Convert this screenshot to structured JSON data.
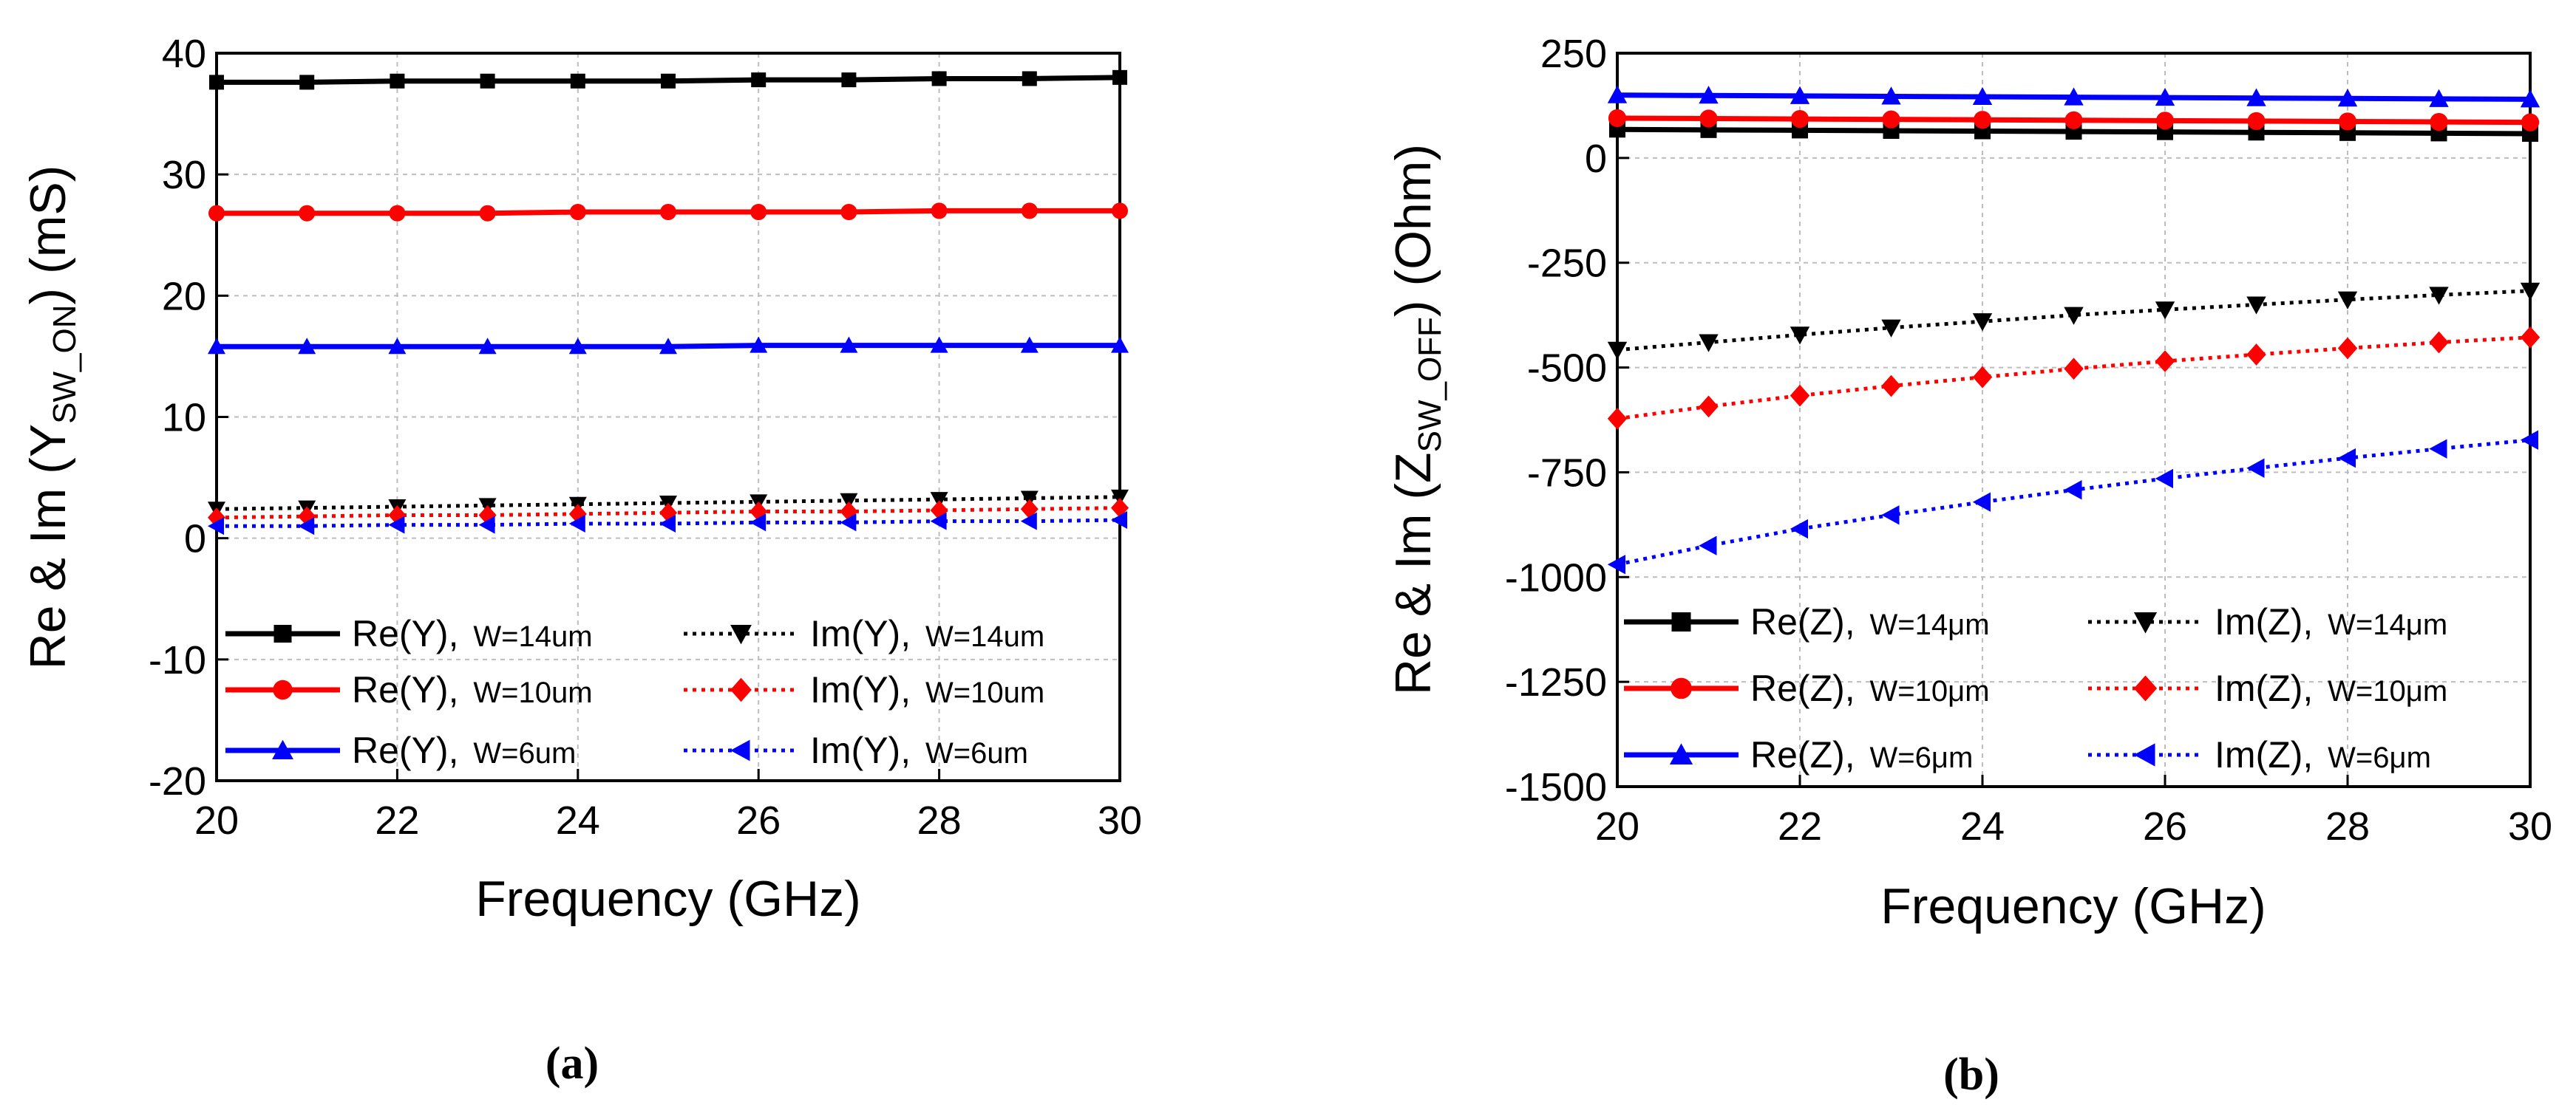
{
  "chart_data": [
    {
      "type": "line",
      "panel_label": "(a)",
      "xlabel": "Frequency (GHz)",
      "ylabel_prefix": "Re & Im (Y",
      "ylabel_sub": "SW_ON",
      "ylabel_suffix": ") (mS)",
      "xlim": [
        20,
        30
      ],
      "ylim": [
        -20,
        40
      ],
      "xticks": [
        "20",
        "22",
        "24",
        "26",
        "28",
        "30"
      ],
      "yticks": [
        "-20",
        "-10",
        "0",
        "10",
        "20",
        "30",
        "40"
      ],
      "grid": true,
      "legend_position": "bottom",
      "x": [
        20,
        21,
        22,
        23,
        24,
        25,
        26,
        27,
        28,
        29,
        30
      ],
      "series": [
        {
          "name": "Re(Y)",
          "sub": "W=14um",
          "color": "#000000",
          "style": "solid",
          "marker": "square",
          "values": [
            37.6,
            37.6,
            37.7,
            37.7,
            37.7,
            37.7,
            37.8,
            37.8,
            37.9,
            37.9,
            38.0
          ]
        },
        {
          "name": "Re(Y)",
          "sub": "W=10um",
          "color": "#ff0000",
          "style": "solid",
          "marker": "circle",
          "values": [
            26.8,
            26.8,
            26.8,
            26.8,
            26.9,
            26.9,
            26.9,
            26.9,
            27.0,
            27.0,
            27.0
          ]
        },
        {
          "name": "Re(Y)",
          "sub": "W=6um",
          "color": "#0000ff",
          "style": "solid",
          "marker": "triangle-up",
          "values": [
            15.8,
            15.8,
            15.8,
            15.8,
            15.8,
            15.8,
            15.9,
            15.9,
            15.9,
            15.9,
            15.9
          ]
        },
        {
          "name": "Im(Y)",
          "sub": "W=14um",
          "color": "#000000",
          "style": "dotted",
          "marker": "triangle-down",
          "values": [
            2.4,
            2.5,
            2.6,
            2.7,
            2.8,
            2.9,
            3.0,
            3.1,
            3.2,
            3.3,
            3.4
          ]
        },
        {
          "name": "Im(Y)",
          "sub": "W=10um",
          "color": "#ff0000",
          "style": "dotted",
          "marker": "diamond",
          "values": [
            1.7,
            1.8,
            1.9,
            1.9,
            2.0,
            2.1,
            2.2,
            2.2,
            2.3,
            2.4,
            2.5
          ]
        },
        {
          "name": "Im(Y)",
          "sub": "W=6um",
          "color": "#0000ff",
          "style": "dotted",
          "marker": "triangle-left",
          "values": [
            1.0,
            1.0,
            1.1,
            1.1,
            1.2,
            1.2,
            1.3,
            1.3,
            1.4,
            1.4,
            1.5
          ]
        }
      ]
    },
    {
      "type": "line",
      "panel_label": "(b)",
      "xlabel": "Frequency (GHz)",
      "ylabel_prefix": "Re & Im (Z",
      "ylabel_sub": "SW_OFF",
      "ylabel_suffix": ") (Ohm)",
      "xlim": [
        20,
        30
      ],
      "ylim": [
        -1500,
        250
      ],
      "xticks": [
        "20",
        "22",
        "24",
        "26",
        "28",
        "30"
      ],
      "yticks": [
        "-1500",
        "-1250",
        "-1000",
        "-750",
        "-500",
        "-250",
        "0",
        "250"
      ],
      "grid": true,
      "legend_position": "bottom",
      "x": [
        20,
        21,
        22,
        23,
        24,
        25,
        26,
        27,
        28,
        29,
        30
      ],
      "series": [
        {
          "name": "Re(Z)",
          "sub": "W=14μm",
          "color": "#000000",
          "style": "solid",
          "marker": "square",
          "values": [
            68,
            67,
            66,
            65,
            64,
            63,
            62,
            61,
            60,
            59,
            58
          ]
        },
        {
          "name": "Re(Z)",
          "sub": "W=10μm",
          "color": "#ff0000",
          "style": "solid",
          "marker": "circle",
          "values": [
            95,
            94,
            93,
            92,
            91,
            90,
            89,
            88,
            87,
            86,
            85
          ]
        },
        {
          "name": "Re(Z)",
          "sub": "W=6μm",
          "color": "#0000ff",
          "style": "solid",
          "marker": "triangle-up",
          "values": [
            150,
            149,
            148,
            147,
            146,
            145,
            144,
            143,
            142,
            141,
            140
          ]
        },
        {
          "name": "Im(Z)",
          "sub": "W=14μm",
          "color": "#000000",
          "style": "dotted",
          "marker": "triangle-down",
          "values": [
            -458,
            -440,
            -422,
            -405,
            -390,
            -375,
            -362,
            -350,
            -338,
            -327,
            -317
          ]
        },
        {
          "name": "Im(Z)",
          "sub": "W=10μm",
          "color": "#ff0000",
          "style": "dotted",
          "marker": "diamond",
          "values": [
            -622,
            -593,
            -567,
            -544,
            -523,
            -503,
            -485,
            -469,
            -454,
            -440,
            -428
          ]
        },
        {
          "name": "Im(Z)",
          "sub": "W=6μm",
          "color": "#0000ff",
          "style": "dotted",
          "marker": "triangle-left",
          "values": [
            -970,
            -925,
            -885,
            -852,
            -821,
            -792,
            -765,
            -740,
            -716,
            -694,
            -673
          ]
        }
      ]
    }
  ]
}
